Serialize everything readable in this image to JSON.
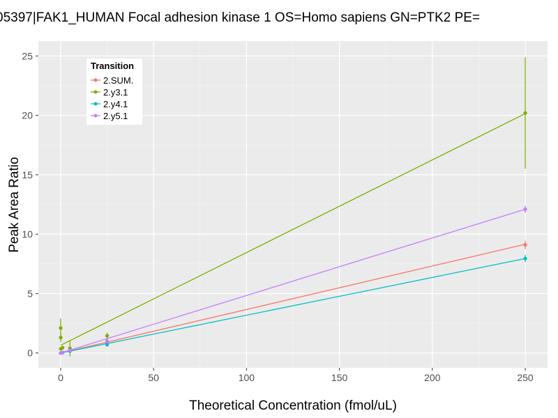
{
  "chart_data": {
    "type": "line",
    "title": "05397|FAK1_HUMAN Focal adhesion kinase 1 OS=Homo sapiens GN=PTK2 PE=",
    "xlabel": "Theoretical Concentration (fmol/uL)",
    "ylabel": "Peak Area Ratio",
    "xlim": [
      -12,
      262
    ],
    "ylim": [
      -1.25,
      26.25
    ],
    "x_ticks": [
      0,
      50,
      100,
      150,
      200,
      250
    ],
    "y_ticks": [
      0,
      5,
      10,
      15,
      20,
      25
    ],
    "grid": true,
    "legend": {
      "title": "Transition",
      "position": "top-left"
    },
    "series": [
      {
        "name": "2.SUM.",
        "color": "#F8766D",
        "points": [
          {
            "x": 0,
            "y": 0.0,
            "err": 0.05
          },
          {
            "x": 0.5,
            "y": 0.02,
            "err": 0.05
          },
          {
            "x": 1,
            "y": 0.05,
            "err": 0.05
          },
          {
            "x": 5,
            "y": 0.18,
            "err": 0.08
          },
          {
            "x": 25,
            "y": 0.85,
            "err": 0.12
          },
          {
            "x": 250,
            "y": 9.1,
            "err": 0.35
          }
        ],
        "fit": [
          [
            0,
            0.0
          ],
          [
            250,
            9.15
          ]
        ]
      },
      {
        "name": "2.y3.1",
        "color": "#7CAE00",
        "points": [
          {
            "x": 0,
            "y": 2.1,
            "err": 0.8
          },
          {
            "x": 0.05,
            "y": 1.3,
            "err": 0.4
          },
          {
            "x": 0.1,
            "y": 0.35,
            "err": 0.1
          },
          {
            "x": 1,
            "y": 0.45,
            "err": 0.1
          },
          {
            "x": 5,
            "y": 0.4,
            "err": 0.7
          },
          {
            "x": 25,
            "y": 1.45,
            "err": 0.25
          },
          {
            "x": 250,
            "y": 20.2,
            "err": 4.7
          }
        ],
        "fit": [
          [
            0,
            0.65
          ],
          [
            250,
            20.15
          ]
        ]
      },
      {
        "name": "2.y4.1",
        "color": "#00BFC4",
        "points": [
          {
            "x": 0,
            "y": 0.0,
            "err": 0.05
          },
          {
            "x": 1,
            "y": 0.03,
            "err": 0.05
          },
          {
            "x": 5,
            "y": 0.15,
            "err": 0.05
          },
          {
            "x": 25,
            "y": 0.7,
            "err": 0.1
          },
          {
            "x": 250,
            "y": 7.95,
            "err": 0.3
          }
        ],
        "fit": [
          [
            0,
            0.0
          ],
          [
            250,
            7.95
          ]
        ]
      },
      {
        "name": "2.y5.1",
        "color": "#C77CFF",
        "points": [
          {
            "x": 0,
            "y": 0.0,
            "err": 0.05
          },
          {
            "x": 1,
            "y": 0.04,
            "err": 0.05
          },
          {
            "x": 5,
            "y": 0.2,
            "err": 0.05
          },
          {
            "x": 25,
            "y": 1.0,
            "err": 0.1
          },
          {
            "x": 250,
            "y": 12.1,
            "err": 0.3
          }
        ],
        "fit": [
          [
            0,
            0.0
          ],
          [
            250,
            12.1
          ]
        ]
      }
    ]
  }
}
